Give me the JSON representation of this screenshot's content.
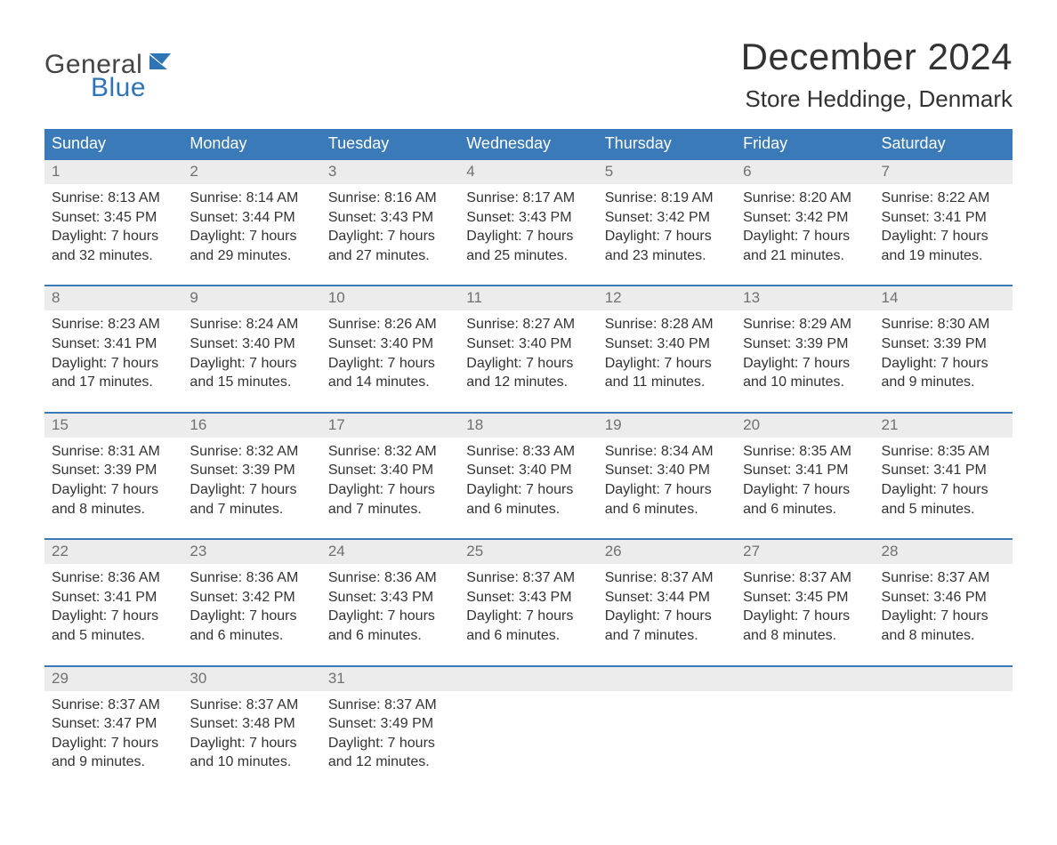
{
  "logo": {
    "general": "General",
    "blue": "Blue",
    "accent_color": "#2f75b5"
  },
  "header": {
    "month_title": "December 2024",
    "location": "Store Heddinge, Denmark"
  },
  "calendar": {
    "header_bg": "#3a7ab8",
    "header_fg": "#ffffff",
    "daynum_bg": "#ececec",
    "daynum_border": "#3a7ab8",
    "daynum_fg": "#707070",
    "text_color": "#333333",
    "font_size_body": 16,
    "day_labels": [
      "Sunday",
      "Monday",
      "Tuesday",
      "Wednesday",
      "Thursday",
      "Friday",
      "Saturday"
    ],
    "weeks": [
      [
        {
          "n": "1",
          "sunrise": "Sunrise: 8:13 AM",
          "sunset": "Sunset: 3:45 PM",
          "d1": "Daylight: 7 hours",
          "d2": "and 32 minutes."
        },
        {
          "n": "2",
          "sunrise": "Sunrise: 8:14 AM",
          "sunset": "Sunset: 3:44 PM",
          "d1": "Daylight: 7 hours",
          "d2": "and 29 minutes."
        },
        {
          "n": "3",
          "sunrise": "Sunrise: 8:16 AM",
          "sunset": "Sunset: 3:43 PM",
          "d1": "Daylight: 7 hours",
          "d2": "and 27 minutes."
        },
        {
          "n": "4",
          "sunrise": "Sunrise: 8:17 AM",
          "sunset": "Sunset: 3:43 PM",
          "d1": "Daylight: 7 hours",
          "d2": "and 25 minutes."
        },
        {
          "n": "5",
          "sunrise": "Sunrise: 8:19 AM",
          "sunset": "Sunset: 3:42 PM",
          "d1": "Daylight: 7 hours",
          "d2": "and 23 minutes."
        },
        {
          "n": "6",
          "sunrise": "Sunrise: 8:20 AM",
          "sunset": "Sunset: 3:42 PM",
          "d1": "Daylight: 7 hours",
          "d2": "and 21 minutes."
        },
        {
          "n": "7",
          "sunrise": "Sunrise: 8:22 AM",
          "sunset": "Sunset: 3:41 PM",
          "d1": "Daylight: 7 hours",
          "d2": "and 19 minutes."
        }
      ],
      [
        {
          "n": "8",
          "sunrise": "Sunrise: 8:23 AM",
          "sunset": "Sunset: 3:41 PM",
          "d1": "Daylight: 7 hours",
          "d2": "and 17 minutes."
        },
        {
          "n": "9",
          "sunrise": "Sunrise: 8:24 AM",
          "sunset": "Sunset: 3:40 PM",
          "d1": "Daylight: 7 hours",
          "d2": "and 15 minutes."
        },
        {
          "n": "10",
          "sunrise": "Sunrise: 8:26 AM",
          "sunset": "Sunset: 3:40 PM",
          "d1": "Daylight: 7 hours",
          "d2": "and 14 minutes."
        },
        {
          "n": "11",
          "sunrise": "Sunrise: 8:27 AM",
          "sunset": "Sunset: 3:40 PM",
          "d1": "Daylight: 7 hours",
          "d2": "and 12 minutes."
        },
        {
          "n": "12",
          "sunrise": "Sunrise: 8:28 AM",
          "sunset": "Sunset: 3:40 PM",
          "d1": "Daylight: 7 hours",
          "d2": "and 11 minutes."
        },
        {
          "n": "13",
          "sunrise": "Sunrise: 8:29 AM",
          "sunset": "Sunset: 3:39 PM",
          "d1": "Daylight: 7 hours",
          "d2": "and 10 minutes."
        },
        {
          "n": "14",
          "sunrise": "Sunrise: 8:30 AM",
          "sunset": "Sunset: 3:39 PM",
          "d1": "Daylight: 7 hours",
          "d2": "and 9 minutes."
        }
      ],
      [
        {
          "n": "15",
          "sunrise": "Sunrise: 8:31 AM",
          "sunset": "Sunset: 3:39 PM",
          "d1": "Daylight: 7 hours",
          "d2": "and 8 minutes."
        },
        {
          "n": "16",
          "sunrise": "Sunrise: 8:32 AM",
          "sunset": "Sunset: 3:39 PM",
          "d1": "Daylight: 7 hours",
          "d2": "and 7 minutes."
        },
        {
          "n": "17",
          "sunrise": "Sunrise: 8:32 AM",
          "sunset": "Sunset: 3:40 PM",
          "d1": "Daylight: 7 hours",
          "d2": "and 7 minutes."
        },
        {
          "n": "18",
          "sunrise": "Sunrise: 8:33 AM",
          "sunset": "Sunset: 3:40 PM",
          "d1": "Daylight: 7 hours",
          "d2": "and 6 minutes."
        },
        {
          "n": "19",
          "sunrise": "Sunrise: 8:34 AM",
          "sunset": "Sunset: 3:40 PM",
          "d1": "Daylight: 7 hours",
          "d2": "and 6 minutes."
        },
        {
          "n": "20",
          "sunrise": "Sunrise: 8:35 AM",
          "sunset": "Sunset: 3:41 PM",
          "d1": "Daylight: 7 hours",
          "d2": "and 6 minutes."
        },
        {
          "n": "21",
          "sunrise": "Sunrise: 8:35 AM",
          "sunset": "Sunset: 3:41 PM",
          "d1": "Daylight: 7 hours",
          "d2": "and 5 minutes."
        }
      ],
      [
        {
          "n": "22",
          "sunrise": "Sunrise: 8:36 AM",
          "sunset": "Sunset: 3:41 PM",
          "d1": "Daylight: 7 hours",
          "d2": "and 5 minutes."
        },
        {
          "n": "23",
          "sunrise": "Sunrise: 8:36 AM",
          "sunset": "Sunset: 3:42 PM",
          "d1": "Daylight: 7 hours",
          "d2": "and 6 minutes."
        },
        {
          "n": "24",
          "sunrise": "Sunrise: 8:36 AM",
          "sunset": "Sunset: 3:43 PM",
          "d1": "Daylight: 7 hours",
          "d2": "and 6 minutes."
        },
        {
          "n": "25",
          "sunrise": "Sunrise: 8:37 AM",
          "sunset": "Sunset: 3:43 PM",
          "d1": "Daylight: 7 hours",
          "d2": "and 6 minutes."
        },
        {
          "n": "26",
          "sunrise": "Sunrise: 8:37 AM",
          "sunset": "Sunset: 3:44 PM",
          "d1": "Daylight: 7 hours",
          "d2": "and 7 minutes."
        },
        {
          "n": "27",
          "sunrise": "Sunrise: 8:37 AM",
          "sunset": "Sunset: 3:45 PM",
          "d1": "Daylight: 7 hours",
          "d2": "and 8 minutes."
        },
        {
          "n": "28",
          "sunrise": "Sunrise: 8:37 AM",
          "sunset": "Sunset: 3:46 PM",
          "d1": "Daylight: 7 hours",
          "d2": "and 8 minutes."
        }
      ],
      [
        {
          "n": "29",
          "sunrise": "Sunrise: 8:37 AM",
          "sunset": "Sunset: 3:47 PM",
          "d1": "Daylight: 7 hours",
          "d2": "and 9 minutes."
        },
        {
          "n": "30",
          "sunrise": "Sunrise: 8:37 AM",
          "sunset": "Sunset: 3:48 PM",
          "d1": "Daylight: 7 hours",
          "d2": "and 10 minutes."
        },
        {
          "n": "31",
          "sunrise": "Sunrise: 8:37 AM",
          "sunset": "Sunset: 3:49 PM",
          "d1": "Daylight: 7 hours",
          "d2": "and 12 minutes."
        },
        null,
        null,
        null,
        null
      ]
    ]
  }
}
